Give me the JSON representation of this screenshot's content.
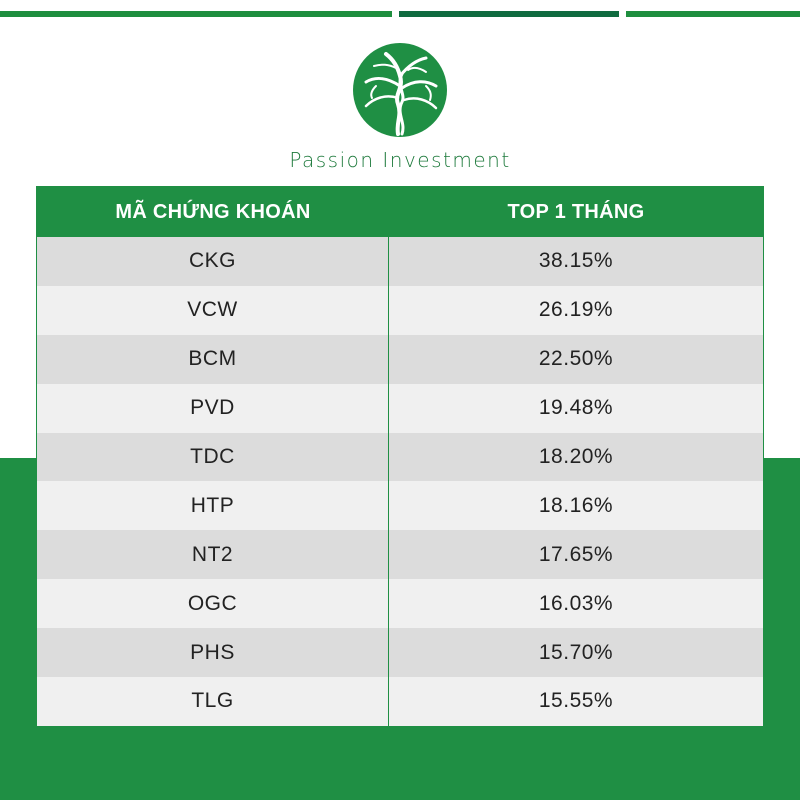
{
  "brand": {
    "name": "Passion Investment",
    "colors": {
      "green": "#1f8f44",
      "dark_green": "#0f6b3f"
    },
    "logo_icon": "tree-circle-logo"
  },
  "table": {
    "headers": [
      "MÃ CHỨNG KHOÁN",
      "TOP 1 THÁNG"
    ],
    "rows": [
      {
        "ticker": "CKG",
        "value": "38.15%"
      },
      {
        "ticker": "VCW",
        "value": "26.19%"
      },
      {
        "ticker": "BCM",
        "value": "22.50%"
      },
      {
        "ticker": "PVD",
        "value": "19.48%"
      },
      {
        "ticker": "TDC",
        "value": "18.20%"
      },
      {
        "ticker": "HTP",
        "value": "18.16%"
      },
      {
        "ticker": "NT2",
        "value": "17.65%"
      },
      {
        "ticker": "OGC",
        "value": "16.03%"
      },
      {
        "ticker": "PHS",
        "value": "15.70%"
      },
      {
        "ticker": "TLG",
        "value": "15.55%"
      }
    ]
  }
}
